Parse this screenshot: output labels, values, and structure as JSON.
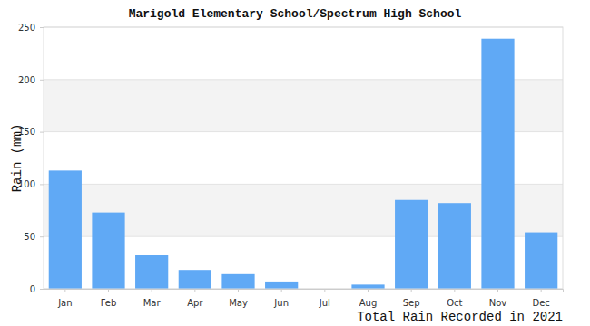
{
  "chart_data": {
    "type": "bar",
    "title": "Marigold Elementary School/Spectrum High School",
    "y_label": "Rain (mm)",
    "x_label": "Total Rain Recorded in 2021",
    "categories": [
      "Jan",
      "Feb",
      "Mar",
      "Apr",
      "May",
      "Jun",
      "Jul",
      "Aug",
      "Sep",
      "Oct",
      "Nov",
      "Dec"
    ],
    "values": [
      113,
      73,
      32,
      18,
      14,
      7,
      0,
      4,
      85,
      82,
      239,
      54
    ],
    "color": "#60a9f5",
    "ylim": [
      0,
      250
    ],
    "yticks": [
      0,
      50,
      100,
      150,
      200,
      250
    ],
    "grid": true
  }
}
